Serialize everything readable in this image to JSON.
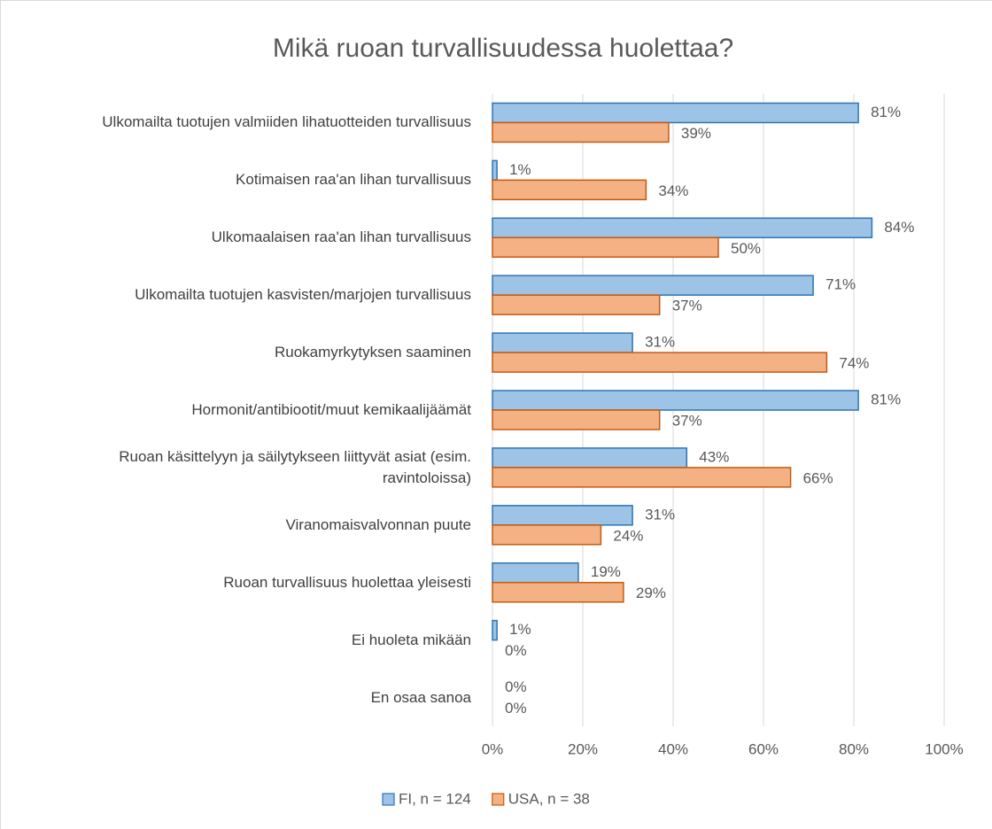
{
  "chart_data": {
    "type": "barh",
    "title": "Mikä ruoan turvallisuudessa huolettaa?",
    "categories": [
      "Ulkomailta tuotujen valmiiden lihatuotteiden turvallisuus",
      "Kotimaisen raa'an lihan turvallisuus",
      "Ulkomaalaisen raa'an lihan turvallisuus",
      "Ulkomailta tuotujen kasvisten/marjojen turvallisuus",
      "Ruokamyrkytyksen saaminen",
      "Hormonit/antibiootit/muut kemikaalijäämät",
      "Ruoan käsittelyyn ja säilytykseen liittyvät asiat (esim. ravintoloissa)",
      "Viranomaisvalvonnan puute",
      "Ruoan turvallisuus huolettaa yleisesti",
      "Ei huoleta mikään",
      "En osaa sanoa"
    ],
    "series": [
      {
        "name": "FI, n = 124",
        "color": "#9dc3e6",
        "edge": "#2e75b6",
        "values": [
          81,
          1,
          84,
          71,
          31,
          81,
          43,
          31,
          19,
          1,
          0
        ],
        "value_labels": [
          "81%",
          "1%",
          "84%",
          "71%",
          "31%",
          "81%",
          "43%",
          "31%",
          "19%",
          "1%",
          "0%"
        ]
      },
      {
        "name": "USA, n = 38",
        "color": "#f4b183",
        "edge": "#c55a11",
        "values": [
          39,
          34,
          50,
          37,
          74,
          37,
          66,
          24,
          29,
          0,
          0
        ],
        "value_labels": [
          "39%",
          "34%",
          "50%",
          "37%",
          "74%",
          "37%",
          "66%",
          "24%",
          "29%",
          "0%",
          "0%"
        ]
      }
    ],
    "xlim": [
      0,
      100
    ],
    "xticks": [
      {
        "value": 0,
        "label": "0%"
      },
      {
        "value": 20,
        "label": "20%"
      },
      {
        "value": 40,
        "label": "40%"
      },
      {
        "value": 60,
        "label": "60%"
      },
      {
        "value": 80,
        "label": "80%"
      },
      {
        "value": 100,
        "label": "100%"
      }
    ],
    "grid": true,
    "legend": "bottom"
  }
}
